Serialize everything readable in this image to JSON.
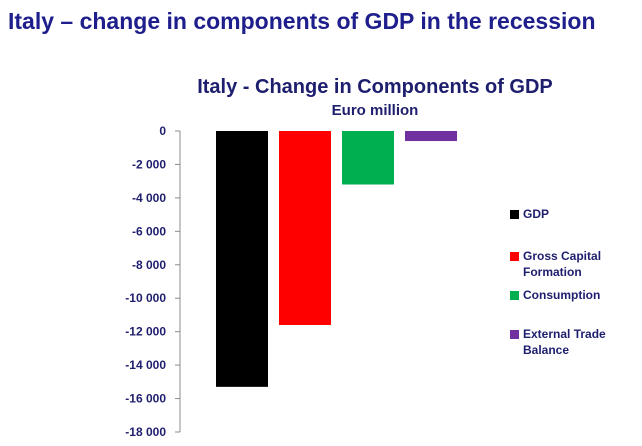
{
  "slide": {
    "title": "Italy – change in components of GDP in the recession"
  },
  "chart_data": {
    "type": "bar",
    "title": "Italy - Change in Components of GDP",
    "subtitle": "Euro million",
    "xlabel": "",
    "ylabel": "",
    "ylim": [
      -18000,
      0
    ],
    "yticks": [
      0,
      -2000,
      -4000,
      -6000,
      -8000,
      -10000,
      -12000,
      -14000,
      -16000,
      -18000
    ],
    "ytick_labels": [
      "0",
      "-2 000",
      "-4 000",
      "-6 000",
      "-8 000",
      "-10 000",
      "-12 000",
      "-14 000",
      "-16 000",
      "-18 000"
    ],
    "grid": false,
    "legend_position": "right",
    "series": [
      {
        "name": "GDP",
        "value": -15300,
        "color": "#000000"
      },
      {
        "name": "Gross Capital Formation",
        "value": -11600,
        "color": "#ff0000"
      },
      {
        "name": "Consumption",
        "value": -3200,
        "color": "#00b050"
      },
      {
        "name": "External Trade Balance",
        "value": -600,
        "color": "#7030a0"
      }
    ],
    "legend": [
      {
        "label_lines": [
          "GDP"
        ]
      },
      {
        "label_lines": [
          "Gross Capital",
          "Formation"
        ]
      },
      {
        "label_lines": [
          "Consumption"
        ]
      },
      {
        "label_lines": [
          "External Trade",
          "Balance"
        ]
      }
    ]
  }
}
